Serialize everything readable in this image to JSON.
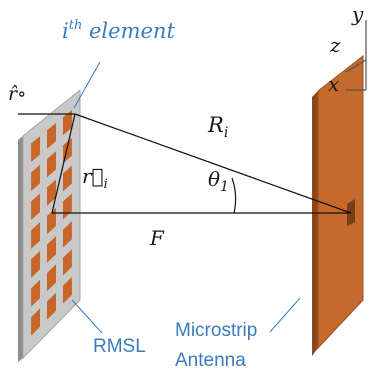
{
  "diagram": {
    "element_label": {
      "prefix": "i",
      "superscript": "th",
      "suffix": " element"
    },
    "feed_vector_label": "r̂∘",
    "position_vector_label": {
      "base": "r⃗",
      "sub": "i"
    },
    "distance_label": {
      "base": "R",
      "sub": "i"
    },
    "angle_label": {
      "base": "θ",
      "sub": "1"
    },
    "focal_label": "F",
    "reflector_label": "RMSL",
    "antenna_label_line1": "Microstrip",
    "antenna_label_line2": "Antenna",
    "axes": {
      "y": "y",
      "z": "z",
      "x": "x"
    },
    "colors": {
      "reflector_panel": "#c9c9c9",
      "reflector_panel_edge": "#9a9a9a",
      "patch": "#c8662a",
      "antenna_face": "#c46a2d",
      "antenna_side": "#8c4818",
      "annotation_blue": "#3a7cc0"
    }
  }
}
